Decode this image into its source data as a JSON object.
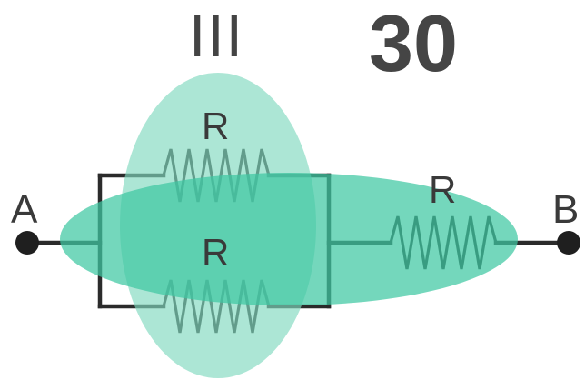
{
  "diagram": {
    "roman_label": "III",
    "number_label": "30",
    "node_a_label": "A",
    "node_b_label": "B",
    "resistors": [
      {
        "label": "R"
      },
      {
        "label": "R"
      },
      {
        "label": "R"
      }
    ],
    "colors": {
      "ellipse_vertical": "#7fd9bf",
      "ellipse_horizontal": "#3ec8a2",
      "wire": "#2b2b2b"
    }
  }
}
